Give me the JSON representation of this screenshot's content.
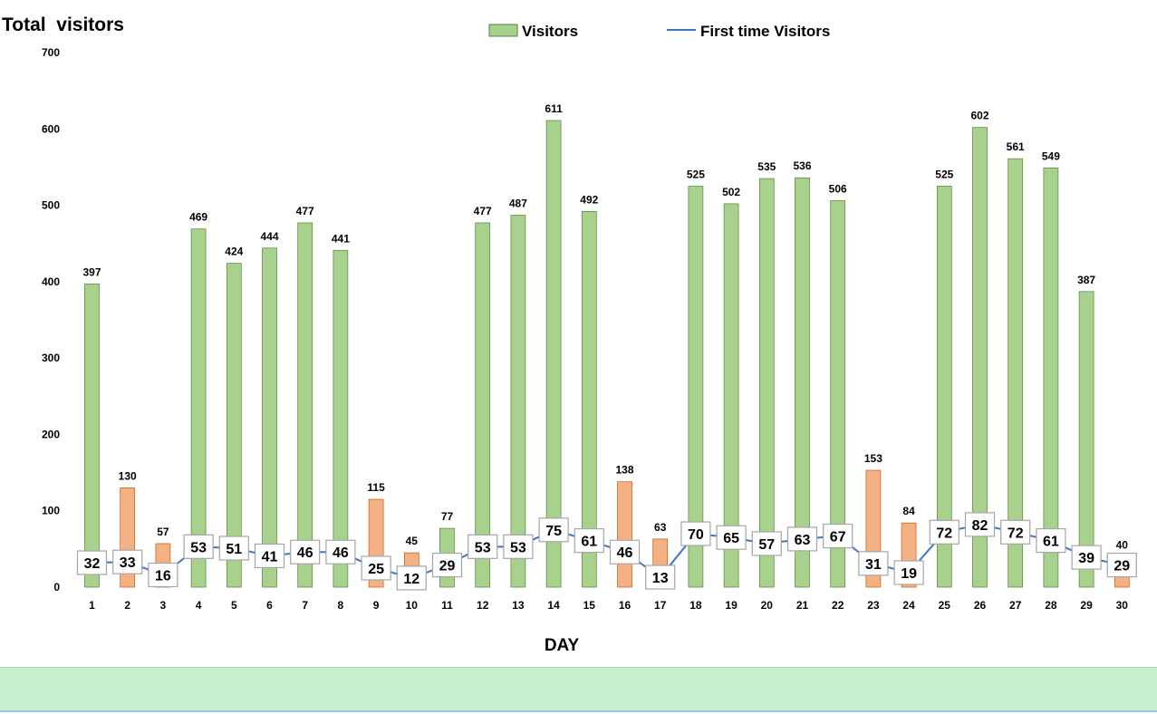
{
  "chart_data": {
    "type": "bar",
    "title": "Total  visitors",
    "xlabel": "DAY",
    "ylabel": "",
    "ylim": [
      0,
      700
    ],
    "yticks": [
      0,
      100,
      200,
      300,
      400,
      500,
      600,
      700
    ],
    "legend_placement": "top-center",
    "categories": [
      "1",
      "2",
      "3",
      "4",
      "5",
      "6",
      "7",
      "8",
      "9",
      "10",
      "11",
      "12",
      "13",
      "14",
      "15",
      "16",
      "17",
      "18",
      "19",
      "20",
      "21",
      "22",
      "23",
      "24",
      "25",
      "26",
      "27",
      "28",
      "29",
      "30"
    ],
    "series": [
      {
        "name": "Visitors",
        "kind": "bar",
        "values": [
          397,
          130,
          57,
          469,
          424,
          444,
          477,
          441,
          115,
          45,
          77,
          477,
          487,
          611,
          492,
          138,
          63,
          525,
          502,
          535,
          536,
          506,
          153,
          84,
          525,
          602,
          561,
          549,
          387,
          40
        ],
        "highlight": [
          false,
          true,
          true,
          false,
          false,
          false,
          false,
          false,
          true,
          true,
          false,
          false,
          false,
          false,
          false,
          true,
          true,
          false,
          false,
          false,
          false,
          false,
          true,
          true,
          false,
          false,
          false,
          false,
          false,
          true
        ]
      },
      {
        "name": "First time Visitors",
        "kind": "line",
        "values": [
          32,
          33,
          16,
          53,
          51,
          41,
          46,
          46,
          25,
          12,
          29,
          53,
          53,
          75,
          61,
          46,
          13,
          70,
          65,
          57,
          63,
          67,
          31,
          19,
          72,
          82,
          72,
          61,
          39,
          29
        ]
      }
    ],
    "colors": {
      "bar_fill": "#a9d18e",
      "bar_stroke": "#548235",
      "highlight_fill": "#f4b183",
      "highlight_stroke": "#c55a11",
      "line": "#4472c4",
      "label_box_stroke": "#a6a6a6"
    }
  },
  "footer": {
    "color": "#c6efce"
  }
}
